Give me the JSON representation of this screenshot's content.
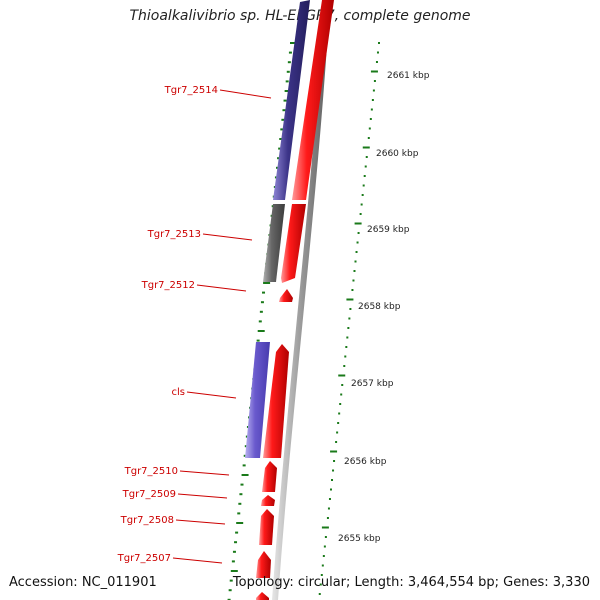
{
  "title": "Thioalkalivibrio sp. HL-EbGR7, complete genome",
  "footer": {
    "accession": "Accession: NC_011901",
    "topology": "Topology: circular; Length: 3,464,554 bp; Genes: 3,330"
  },
  "ruler_labels": [
    "2661 kbp",
    "2660 kbp",
    "2659 kbp",
    "2658 kbp",
    "2657 kbp",
    "2656 kbp",
    "2655 kbp"
  ],
  "gene_labels": [
    "Tgr7_2514",
    "Tgr7_2513",
    "Tgr7_2512",
    "cls",
    "Tgr7_2510",
    "Tgr7_2509",
    "Tgr7_2508",
    "Tgr7_2507"
  ],
  "colors": {
    "cds": "#ee0000",
    "gene_blue": "#3c3488",
    "gene_gray": "#666666",
    "gene_light_blue": "#6a5acd",
    "backbone": "#999999",
    "ticks": "#1a7a1a",
    "label_text": "#cc0000"
  }
}
